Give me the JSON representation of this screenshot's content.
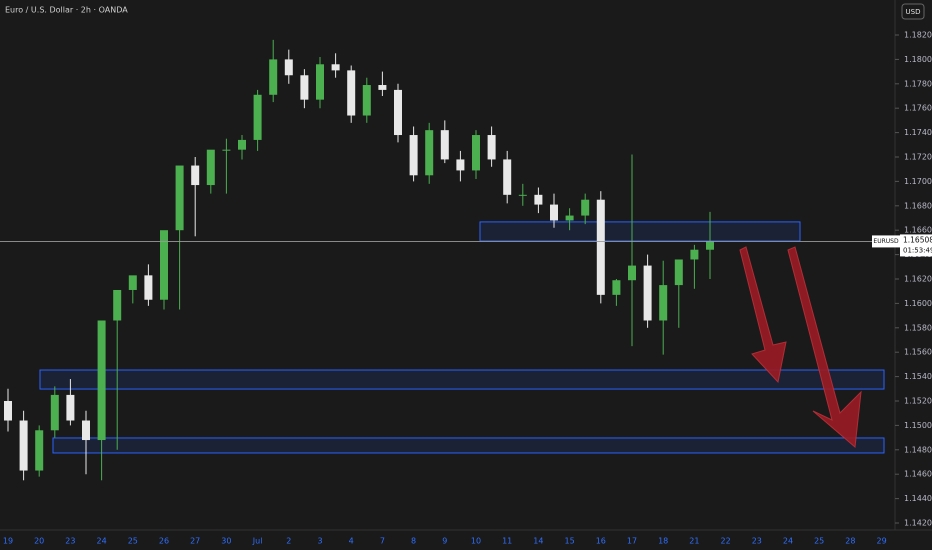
{
  "chart_data": {
    "type": "candlestick",
    "title": "Euro / U.S. Dollar · 2h · OANDA",
    "currency_button": "USD",
    "symbol": "EURUSD",
    "last_price": {
      "value": 1.16508,
      "label": "1.16508"
    },
    "countdown": "01:53:49",
    "up_color": "#4caf50",
    "down_color": "#e8e8e8",
    "zone_color": "#2962ff",
    "x_labels": [
      "19",
      "20",
      "23",
      "24",
      "25",
      "26",
      "27",
      "30",
      "Jul",
      "2",
      "3",
      "4",
      "7",
      "8",
      "9",
      "10",
      "11",
      "14",
      "15",
      "16",
      "17",
      "18",
      "21",
      "22",
      "23",
      "24",
      "25",
      "28",
      "29"
    ],
    "series": [
      {
        "name": "open",
        "values": [
          1.152,
          1.1504,
          1.1463,
          1.1496,
          1.1525,
          1.1504,
          1.1488,
          1.1586,
          1.1611,
          1.1623,
          1.1603,
          1.166,
          1.1713,
          1.1697,
          1.1726,
          1.1726,
          1.1734,
          1.1771,
          1.18,
          1.1787,
          1.1767,
          1.1796,
          1.1791,
          1.1754,
          1.1779,
          1.1775,
          1.1738,
          1.1705,
          1.1742,
          1.1718,
          1.1709,
          1.1738,
          1.1718,
          1.1689,
          1.1689,
          1.1681,
          1.1668,
          1.1672,
          1.1685,
          1.1607,
          1.1619,
          1.1631,
          1.1586,
          1.1615,
          1.1636,
          1.1644
        ]
      },
      {
        "name": "high",
        "values": [
          1.153,
          1.1512,
          1.15,
          1.1532,
          1.1538,
          1.1512,
          1.15,
          1.1595,
          1.1618,
          1.1632,
          1.1625,
          1.1668,
          1.172,
          1.1716,
          1.1735,
          1.1738,
          1.1775,
          1.1816,
          1.1808,
          1.1792,
          1.1802,
          1.1805,
          1.1795,
          1.1785,
          1.179,
          1.178,
          1.1745,
          1.1748,
          1.175,
          1.1725,
          1.1742,
          1.1745,
          1.1725,
          1.1698,
          1.1695,
          1.169,
          1.1678,
          1.169,
          1.1692,
          1.162,
          1.1722,
          1.164,
          1.1635,
          1.1622,
          1.1648,
          1.1675
        ]
      },
      {
        "name": "low",
        "values": [
          1.1495,
          1.1455,
          1.1458,
          1.149,
          1.15,
          1.146,
          1.1455,
          1.148,
          1.16,
          1.1598,
          1.1595,
          1.1595,
          1.1655,
          1.169,
          1.169,
          1.1718,
          1.1725,
          1.1765,
          1.178,
          1.176,
          1.176,
          1.1785,
          1.1748,
          1.1748,
          1.177,
          1.1732,
          1.17,
          1.1698,
          1.1715,
          1.17,
          1.1702,
          1.1712,
          1.1682,
          1.168,
          1.1674,
          1.1662,
          1.166,
          1.1665,
          1.16,
          1.1598,
          1.1565,
          1.158,
          1.1558,
          1.158,
          1.1612,
          1.162
        ]
      },
      {
        "name": "close",
        "values": [
          1.1504,
          1.1463,
          1.1496,
          1.1525,
          1.1504,
          1.1488,
          1.1586,
          1.1611,
          1.1623,
          1.1603,
          1.166,
          1.1713,
          1.1697,
          1.1726,
          1.1726,
          1.1734,
          1.1771,
          1.18,
          1.1787,
          1.1767,
          1.1796,
          1.1791,
          1.1754,
          1.1779,
          1.1775,
          1.1738,
          1.1705,
          1.1742,
          1.1718,
          1.1709,
          1.1738,
          1.1718,
          1.1689,
          1.1689,
          1.1681,
          1.1668,
          1.1672,
          1.1685,
          1.1607,
          1.1619,
          1.1631,
          1.1586,
          1.1615,
          1.1636,
          1.1644,
          1.16508
        ]
      }
    ],
    "zones": [
      {
        "top": 1.16668,
        "bottom": 1.16512
      },
      {
        "top": 1.15454,
        "bottom": 1.15298
      },
      {
        "top": 1.14897,
        "bottom": 1.14774
      }
    ],
    "ylim": [
      1.142,
      1.182
    ],
    "yticks": [
      {
        "value": 1.142,
        "label": "1.14200"
      },
      {
        "value": 1.144,
        "label": "1.14400"
      },
      {
        "value": 1.146,
        "label": "1.14600"
      },
      {
        "value": 1.148,
        "label": "1.14800"
      },
      {
        "value": 1.15,
        "label": "1.15000"
      },
      {
        "value": 1.152,
        "label": "1.15200"
      },
      {
        "value": 1.154,
        "label": "1.15400"
      },
      {
        "value": 1.156,
        "label": "1.15600"
      },
      {
        "value": 1.158,
        "label": "1.15800"
      },
      {
        "value": 1.16,
        "label": "1.16000"
      },
      {
        "value": 1.162,
        "label": "1.16200"
      },
      {
        "value": 1.164,
        "label": "1.16400"
      },
      {
        "value": 1.166,
        "label": "1.16600"
      },
      {
        "value": 1.168,
        "label": "1.16800"
      },
      {
        "value": 1.17,
        "label": "1.17000"
      },
      {
        "value": 1.172,
        "label": "1.17200"
      },
      {
        "value": 1.174,
        "label": "1.17400"
      },
      {
        "value": 1.176,
        "label": "1.17600"
      },
      {
        "value": 1.178,
        "label": "1.17800"
      },
      {
        "value": 1.18,
        "label": "1.18000"
      },
      {
        "value": 1.182,
        "label": "1.18200"
      }
    ]
  }
}
